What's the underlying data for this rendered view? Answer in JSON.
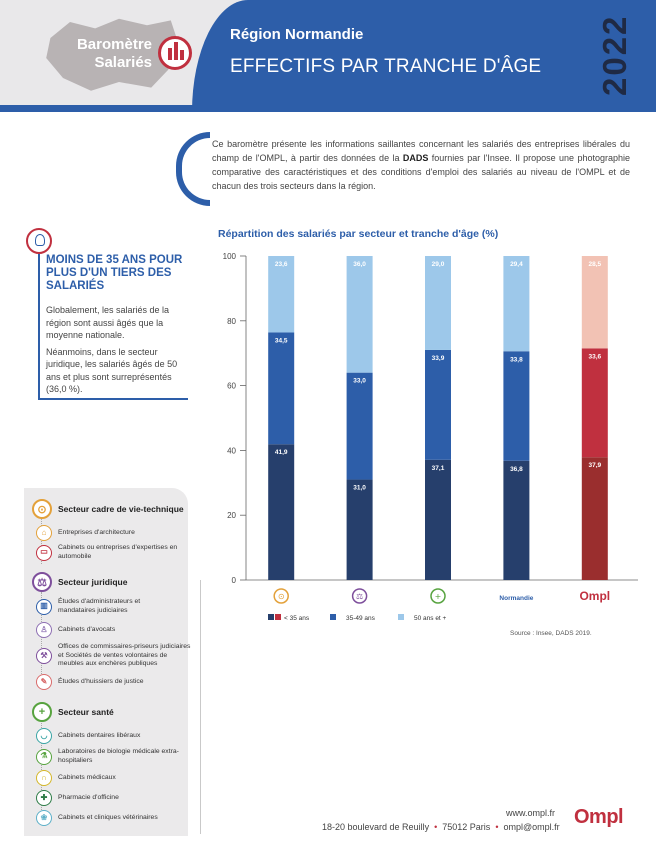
{
  "header": {
    "barometre_line1": "Baromètre",
    "barometre_line2": "Salariés",
    "region": "Région Normandie",
    "title": "EFFECTIFS PAR TRANCHE D'ÂGE",
    "year": "2022"
  },
  "intro": {
    "text_before": "Ce baromètre présente les informations saillantes concernant les salariés des entreprises libérales du champ de l'OMPL, à partir des données de la ",
    "highlight": "DADS",
    "text_after": " fournies par l'Insee. Il propose une photographie comparative des caractéristiques et des conditions d'emploi des salariés au niveau de l'OMPL et de chacun des trois secteurs dans la région."
  },
  "highlight_box": {
    "title": "MOINS DE 35 ANS POUR PLUS D'UN TIERS DES SALARIÉS",
    "paragraph1": "Globalement, les salariés de la région sont aussi âgés que la moyenne nationale.",
    "paragraph2": "Néanmoins, dans le secteur juridique, les salariés âgés de 50 ans et plus sont surreprésentés (36,0 %)."
  },
  "sectors": [
    {
      "name": "Secteur cadre de vie-technique",
      "icon": "compass-icon",
      "items": [
        {
          "label": "Entreprises d'architecture",
          "icon": "architecture-icon"
        },
        {
          "label": "Cabinets ou entreprises d'expertises en automobile",
          "icon": "car-icon"
        }
      ]
    },
    {
      "name": "Secteur juridique",
      "icon": "scales-icon",
      "items": [
        {
          "label": "Études d'administrateurs et mandataires judiciaires",
          "icon": "building-icon"
        },
        {
          "label": "Cabinets d'avocats",
          "icon": "lawyer-icon"
        },
        {
          "label": "Offices de commissaires-priseurs judiciaires et Sociétés de ventes volontaires de meubles aux enchères publiques",
          "icon": "gavel-icon"
        },
        {
          "label": "Études d'huissiers de justice",
          "icon": "bailiff-icon"
        }
      ]
    },
    {
      "name": "Secteur santé",
      "icon": "cross-icon",
      "items": [
        {
          "label": "Cabinets dentaires libéraux",
          "icon": "tooth-icon"
        },
        {
          "label": "Laboratoires de biologie médicale extra-hospitaliers",
          "icon": "lab-icon"
        },
        {
          "label": "Cabinets médicaux",
          "icon": "stethoscope-icon"
        },
        {
          "label": "Pharmacie d'officine",
          "icon": "pharmacy-icon"
        },
        {
          "label": "Cabinets et cliniques vétérinaires",
          "icon": "vet-icon"
        }
      ]
    }
  ],
  "chart_data": {
    "type": "bar",
    "stacked": true,
    "title": "Répartition des salariés par secteur et tranche d'âge (%)",
    "categories": [
      "cadre-de-vie-technique-icon",
      "juridique-icon",
      "sante-icon",
      "Normandie",
      "OMPL"
    ],
    "category_text_labels": [
      "",
      "",
      "",
      "Normandie",
      "OMPL"
    ],
    "series": [
      {
        "name": "< 35 ans",
        "values": [
          41.9,
          31.0,
          37.1,
          36.8,
          37.9
        ],
        "labels": [
          "41,9",
          "31,0",
          "37,1",
          "36,8",
          "37,9"
        ],
        "color": "#263f6c"
      },
      {
        "name": "35-49 ans",
        "values": [
          34.5,
          33.0,
          33.9,
          33.8,
          33.6
        ],
        "labels": [
          "34,5",
          "33,0",
          "33,9",
          "33,8",
          "33,6"
        ],
        "color": "#2d5ea9"
      },
      {
        "name": "50 ans et +",
        "values": [
          23.6,
          36.0,
          29.0,
          29.4,
          28.5
        ],
        "labels": [
          "23,6",
          "36,0",
          "29,0",
          "29,4",
          "28,5"
        ],
        "color": "#9dc8ea"
      }
    ],
    "ompl_colors": [
      "#9a2e2e",
      "#c0303f",
      "#f2c2b4"
    ],
    "ylim": [
      0,
      100
    ],
    "yticks": [
      0,
      20,
      40,
      60,
      80,
      100
    ],
    "source": "Source : Insee, DADS 2019."
  },
  "footer": {
    "website": "www.ompl.fr",
    "address": "18-20 boulevard de Reuilly",
    "city": "75012 Paris",
    "email": "ompl@ompl.fr",
    "logo": "Ompl"
  },
  "colors": {
    "blue": "#2d5ea9",
    "dark_blue": "#263f6c",
    "light_blue": "#9dc8ea",
    "red": "#c0303f"
  }
}
